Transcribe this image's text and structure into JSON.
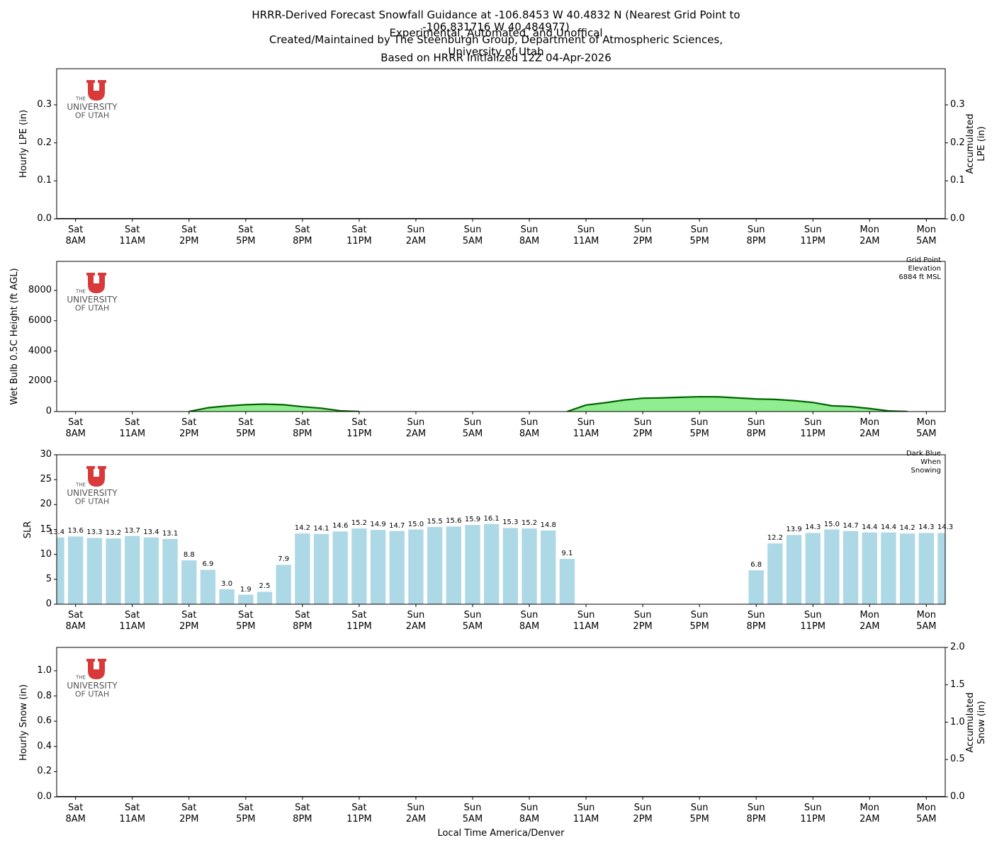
{
  "title": [
    "HRRR-Derived Forecast Snowfall Guidance at -106.8453 W 40.4832 N (Nearest Grid Point to -106.831716 W 40.484977)",
    "Experimental, Automated, and Unoffical",
    "Created/Maintained by The Steenburgh Group, Department of Atmospheric Sciences, University of Utah",
    "Based on HRRR Initialized 12Z 04-Apr-2026"
  ],
  "logo": {
    "line1": "THE",
    "line2": "UNIVERSITY",
    "line3": "OF UTAH"
  },
  "chart_data": [
    {
      "type": "bar",
      "ylabel": "Hourly LPE (in)",
      "y2label": "Accumulated LPE (in)",
      "categories": [
        null,
        "Sat\n8AM",
        null,
        null,
        "Sat\n11AM",
        null,
        null,
        "Sat\n2PM",
        null,
        null,
        "Sat\n5PM",
        null,
        null,
        "Sat\n8PM",
        null,
        null,
        "Sat\n11PM",
        null,
        null,
        "Sun\n2AM",
        null,
        null,
        "Sun\n5AM",
        null,
        null,
        "Sun\n8AM",
        null,
        null,
        "Sun\n11AM",
        null,
        null,
        "Sun\n2PM",
        null,
        null,
        "Sun\n5PM",
        null,
        null,
        "Sun\n8PM",
        null,
        null,
        "Sun\n11PM",
        null,
        null,
        "Mon\n2AM",
        null,
        null,
        "Mon\n5AM",
        null
      ],
      "ylim": [
        0,
        0.395
      ],
      "yticks": [
        {
          "value": 0,
          "label": "0.0"
        },
        0.1,
        0.2,
        0.3
      ],
      "y2lim": [
        0,
        0.395
      ],
      "y2ticks": [
        {
          "value": 0,
          "label": "0.0"
        },
        0.1,
        0.2,
        0.3
      ],
      "series": [
        {
          "type": "bar",
          "color": "#1f77b4",
          "values": [
            0,
            0,
            0,
            0,
            0,
            0,
            0,
            0,
            0,
            0,
            0,
            0,
            0,
            0,
            0,
            0,
            0,
            0,
            0,
            0,
            0,
            0,
            0,
            0,
            0,
            0,
            0,
            0,
            0,
            0,
            0,
            0,
            0,
            0,
            0,
            0,
            0,
            0,
            0,
            0,
            0,
            0,
            0,
            0,
            0,
            0,
            0,
            0
          ]
        },
        {
          "type": "line",
          "color": "#000000",
          "axis": "y2",
          "values": [
            0,
            0,
            0,
            0,
            0,
            0,
            0,
            0,
            0,
            0,
            0,
            0,
            0,
            0,
            0,
            0,
            0,
            0,
            0,
            0,
            0,
            0,
            0,
            0,
            0,
            0,
            0,
            0,
            0,
            0,
            0,
            0,
            0,
            0,
            0,
            0,
            0,
            0,
            0,
            0,
            0,
            0,
            0,
            0,
            0,
            0,
            0,
            0
          ]
        }
      ]
    },
    {
      "type": "area",
      "ylabel": "Wet Bulb 0.5C Height (ft AGL)",
      "annotation": "Grid Point Elevation 6884 ft MSL",
      "categories": [
        null,
        "Sat\n8AM",
        null,
        null,
        "Sat\n11AM",
        null,
        null,
        "Sat\n2PM",
        null,
        null,
        "Sat\n5PM",
        null,
        null,
        "Sat\n8PM",
        null,
        null,
        "Sat\n11PM",
        null,
        null,
        "Sun\n2AM",
        null,
        null,
        "Sun\n5AM",
        null,
        null,
        "Sun\n8AM",
        null,
        null,
        "Sun\n11AM",
        null,
        null,
        "Sun\n2PM",
        null,
        null,
        "Sun\n5PM",
        null,
        null,
        "Sun\n8PM",
        null,
        null,
        "Sun\n11PM",
        null,
        null,
        "Mon\n2AM",
        null,
        null,
        "Mon\n5AM",
        null
      ],
      "ylim": [
        0,
        9920
      ],
      "yticks": [
        0,
        2000,
        4000,
        6000,
        8000
      ],
      "series": [
        {
          "type": "area",
          "color": "#006400",
          "fill": "#90ee90",
          "values": [
            null,
            null,
            null,
            null,
            null,
            null,
            null,
            0,
            250,
            370,
            450,
            490,
            450,
            320,
            220,
            50,
            0,
            null,
            null,
            null,
            null,
            null,
            null,
            null,
            null,
            null,
            null,
            0,
            430,
            580,
            760,
            880,
            900,
            940,
            980,
            970,
            900,
            830,
            800,
            720,
            600,
            380,
            330,
            200,
            40,
            0,
            null,
            null
          ]
        }
      ]
    },
    {
      "type": "bar",
      "ylabel": "SLR",
      "annotation": "Dark Blue When Snowing",
      "categories": [
        null,
        "Sat\n8AM",
        null,
        null,
        "Sat\n11AM",
        null,
        null,
        "Sat\n2PM",
        null,
        null,
        "Sat\n5PM",
        null,
        null,
        "Sat\n8PM",
        null,
        null,
        "Sat\n11PM",
        null,
        null,
        "Sun\n2AM",
        null,
        null,
        "Sun\n5AM",
        null,
        null,
        "Sun\n8AM",
        null,
        null,
        "Sun\n11AM",
        null,
        null,
        "Sun\n2PM",
        null,
        null,
        "Sun\n5PM",
        null,
        null,
        "Sun\n8PM",
        null,
        null,
        "Sun\n11PM",
        null,
        null,
        "Mon\n2AM",
        null,
        null,
        "Mon\n5AM",
        null
      ],
      "ylim": [
        0,
        30
      ],
      "yticks": [
        0,
        5,
        10,
        15,
        20,
        25,
        30
      ],
      "series": [
        {
          "type": "bar",
          "color": "#add8e6",
          "values": [
            13.4,
            13.6,
            13.3,
            13.2,
            13.7,
            13.4,
            13.1,
            8.8,
            6.9,
            3.0,
            1.9,
            2.5,
            7.9,
            14.2,
            14.1,
            14.6,
            15.2,
            14.9,
            14.7,
            15.0,
            15.5,
            15.6,
            15.9,
            16.1,
            15.3,
            15.2,
            14.8,
            9.1,
            null,
            null,
            null,
            null,
            null,
            null,
            null,
            null,
            null,
            6.8,
            12.2,
            13.9,
            14.3,
            15.0,
            14.7,
            14.4,
            14.4,
            14.2,
            14.3,
            14.3
          ],
          "value_labels": [
            "13.4",
            "13.6",
            "13.3",
            "13.2",
            "13.7",
            "13.4",
            "13.1",
            "8.8",
            "6.9",
            "3.0",
            "1.9",
            "2.5",
            "7.9",
            "14.2",
            "14.1",
            "14.6",
            "15.2",
            "14.9",
            "14.7",
            "15.0",
            "15.5",
            "15.6",
            "15.9",
            "16.1",
            "15.3",
            "15.2",
            "14.8",
            "9.1",
            null,
            null,
            null,
            null,
            null,
            null,
            null,
            null,
            null,
            "6.8",
            "12.2",
            "13.9",
            "14.3",
            "15.0",
            "14.7",
            "14.4",
            "14.4",
            "14.2",
            "14.3",
            "14.3"
          ]
        }
      ]
    },
    {
      "type": "bar",
      "ylabel": "Hourly Snow (in)",
      "y2label": "Accumulated Snow (in)",
      "xlabel": "Local Time America/Denver",
      "categories": [
        null,
        "Sat\n8AM",
        null,
        null,
        "Sat\n11AM",
        null,
        null,
        "Sat\n2PM",
        null,
        null,
        "Sat\n5PM",
        null,
        null,
        "Sat\n8PM",
        null,
        null,
        "Sat\n11PM",
        null,
        null,
        "Sun\n2AM",
        null,
        null,
        "Sun\n5AM",
        null,
        null,
        "Sun\n8AM",
        null,
        null,
        "Sun\n11AM",
        null,
        null,
        "Sun\n2PM",
        null,
        null,
        "Sun\n5PM",
        null,
        null,
        "Sun\n8PM",
        null,
        null,
        "Sun\n11PM",
        null,
        null,
        "Mon\n2AM",
        null,
        null,
        "Mon\n5AM",
        null
      ],
      "ylim": [
        0,
        1.185
      ],
      "yticks": [
        {
          "value": 0,
          "label": "0.0"
        },
        0.2,
        0.4,
        0.6,
        0.8,
        {
          "value": 1,
          "label": "1.0"
        }
      ],
      "y2lim": [
        0,
        2
      ],
      "y2ticks": [
        {
          "value": 0,
          "label": "0.0"
        },
        0.5,
        {
          "value": 1,
          "label": "1.0"
        },
        1.5,
        {
          "value": 2,
          "label": "2.0"
        }
      ],
      "series": [
        {
          "type": "bar",
          "color": "#00008b",
          "values": [
            0,
            0,
            0,
            0,
            0,
            0,
            0,
            0,
            0,
            0,
            0,
            0,
            0,
            0,
            0,
            0,
            0,
            0,
            0,
            0,
            0,
            0,
            0,
            0,
            0,
            0,
            0,
            0,
            0,
            0,
            0,
            0,
            0,
            0,
            0,
            0,
            0,
            0,
            0,
            0,
            0,
            0,
            0,
            0,
            0,
            0,
            0,
            0
          ]
        },
        {
          "type": "line",
          "color": "#000000",
          "axis": "y2",
          "values": [
            0,
            0,
            0,
            0,
            0,
            0,
            0,
            0,
            0,
            0,
            0,
            0,
            0,
            0,
            0,
            0,
            0,
            0,
            0,
            0,
            0,
            0,
            0,
            0,
            0,
            0,
            0,
            0,
            0,
            0,
            0,
            0,
            0,
            0,
            0,
            0,
            0,
            0,
            0,
            0,
            0,
            0,
            0,
            0,
            0,
            0,
            0,
            0
          ]
        }
      ]
    }
  ]
}
